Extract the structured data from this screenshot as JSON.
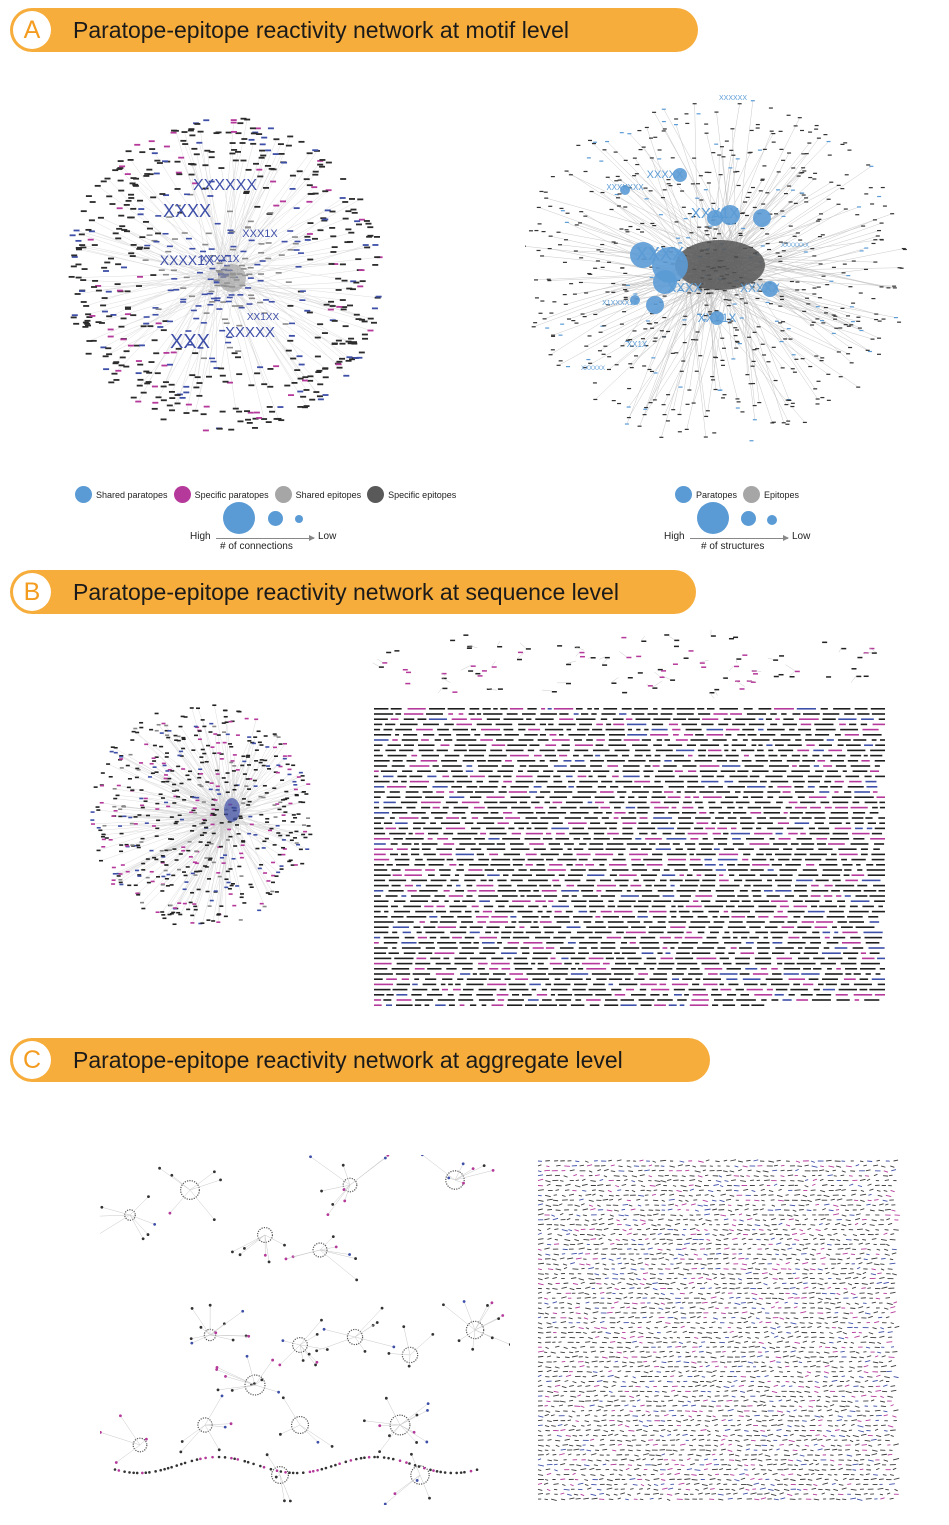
{
  "panels": {
    "a": {
      "letter": "A",
      "title": "Paratope-epitope reactivity network at motif level"
    },
    "b": {
      "letter": "B",
      "title": "Paratope-epitope reactivity network at sequence level"
    },
    "c": {
      "letter": "C",
      "title": "Paratope-epitope reactivity network at aggregate level"
    }
  },
  "legend_left": {
    "items": [
      {
        "label": "Shared paratopes",
        "color": "#5b9bd5"
      },
      {
        "label": "Specific paratopes",
        "color": "#b5399b"
      },
      {
        "label": "Shared epitopes",
        "color": "#a6a6a6"
      },
      {
        "label": "Specific epitopes",
        "color": "#595959"
      }
    ],
    "high": "High",
    "low": "Low",
    "caption": "# of connections"
  },
  "legend_right": {
    "items": [
      {
        "label": "Paratopes",
        "color": "#5b9bd5"
      },
      {
        "label": "Epitopes",
        "color": "#a6a6a6"
      }
    ],
    "high": "High",
    "low": "Low",
    "caption": "# of structures"
  },
  "motif_labels_left": [
    "XXXXXX",
    "XXXX",
    "XXXX1X",
    "XXXXX",
    "XXX",
    "XXX1X",
    "XXXX1X",
    "XX1XX"
  ],
  "motif_labels_right": [
    "XXXX",
    "XXX1X",
    "XXXXX",
    "XXXX",
    "XXXXX",
    "XXX1X",
    "XXXXXX",
    "XXXXXXX",
    "X1XXXX1X",
    "XX1X",
    "XXXXXX",
    "XXXXXXX"
  ],
  "colors": {
    "paratope_blue": "#5b9bd5",
    "shared_paratope_motif": "#3e4fa8",
    "specific_paratope": "#b5399b",
    "shared_epitope": "#a6a6a6",
    "specific_epitope": "#595959",
    "header_orange": "#f7ad3b",
    "edge_gray": "#cfcfcf"
  }
}
